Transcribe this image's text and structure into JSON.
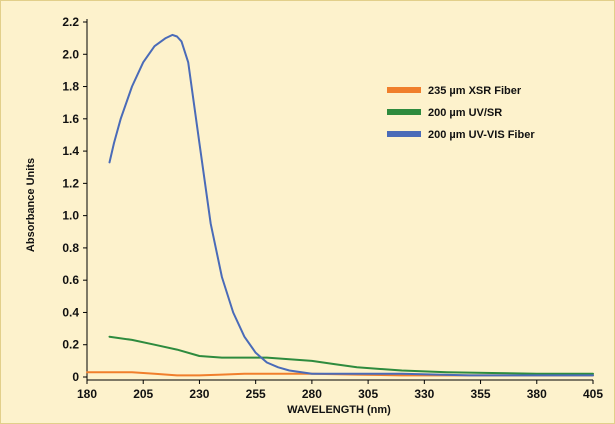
{
  "chart_data": {
    "type": "line",
    "title": "",
    "xlabel": "WAVELENGTH (nm)",
    "ylabel": "Absorbance Units",
    "xlim": [
      180,
      405
    ],
    "ylim": [
      0,
      2.2
    ],
    "x_ticks": [
      180,
      205,
      230,
      255,
      280,
      305,
      330,
      355,
      380,
      405
    ],
    "y_ticks": [
      0,
      0.2,
      0.4,
      0.6,
      0.8,
      1.0,
      1.2,
      1.4,
      1.6,
      1.8,
      2.0,
      2.2
    ],
    "y_tick_labels": [
      "0",
      "0.2",
      "0.4",
      "0.6",
      "0.8",
      "1.0",
      "1.2",
      "1.4",
      "1.6",
      "1.8",
      "2.0",
      "2.2"
    ],
    "grid": false,
    "legend_position": "top-right",
    "series": [
      {
        "name": "235 µm XSR Fiber",
        "color": "#f07f2c",
        "x": [
          180,
          190,
          200,
          210,
          220,
          230,
          240,
          250,
          260,
          280,
          300,
          320,
          340,
          360,
          380,
          405
        ],
        "y": [
          0.03,
          0.03,
          0.03,
          0.02,
          0.01,
          0.01,
          0.015,
          0.02,
          0.02,
          0.02,
          0.015,
          0.01,
          0.01,
          0.01,
          0.01,
          0.01
        ]
      },
      {
        "name": "200 µm UV/SR",
        "color": "#2e8b3e",
        "x": [
          190,
          200,
          210,
          220,
          230,
          240,
          250,
          260,
          270,
          280,
          290,
          300,
          320,
          340,
          360,
          380,
          405
        ],
        "y": [
          0.25,
          0.23,
          0.2,
          0.17,
          0.13,
          0.12,
          0.12,
          0.12,
          0.11,
          0.1,
          0.08,
          0.06,
          0.04,
          0.03,
          0.025,
          0.02,
          0.02
        ]
      },
      {
        "name": "200 µm UV-VIS Fiber",
        "color": "#4a6bb8",
        "x": [
          190,
          192,
          195,
          200,
          205,
          210,
          215,
          218,
          220,
          222,
          225,
          230,
          235,
          240,
          245,
          250,
          255,
          260,
          265,
          270,
          280,
          290,
          300,
          320,
          350,
          380,
          405
        ],
        "y": [
          1.33,
          1.45,
          1.6,
          1.8,
          1.95,
          2.05,
          2.1,
          2.12,
          2.11,
          2.08,
          1.95,
          1.45,
          0.95,
          0.62,
          0.4,
          0.25,
          0.15,
          0.09,
          0.06,
          0.04,
          0.02,
          0.02,
          0.02,
          0.02,
          0.01,
          0.01,
          0.01
        ]
      }
    ]
  }
}
